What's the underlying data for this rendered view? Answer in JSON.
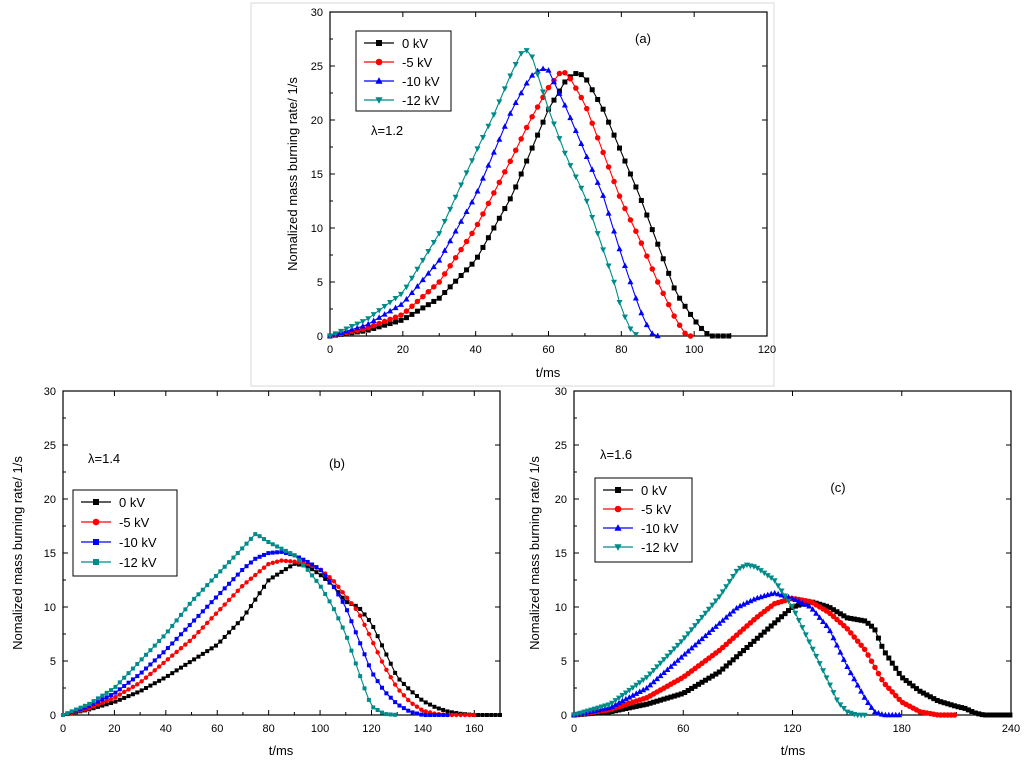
{
  "chart_data": [
    {
      "type": "line",
      "panel": "(a)",
      "annotation": "λ=1.2",
      "xlabel": "t/ms",
      "ylabel": "Nomalized mass burning rate/ 1/s",
      "xlim": [
        0,
        120
      ],
      "ylim": [
        0,
        30
      ],
      "xticks": [
        0,
        20,
        40,
        60,
        80,
        100,
        120
      ],
      "yticks": [
        0,
        5,
        10,
        15,
        20,
        25,
        30
      ],
      "legend_position": "top-left",
      "series": [
        {
          "name": "0 kV",
          "color": "#000000",
          "marker": "square",
          "x": [
            0,
            10,
            20,
            30,
            40,
            50,
            55,
            60,
            65,
            68,
            70,
            75,
            80,
            85,
            90,
            95,
            100,
            103,
            105,
            110
          ],
          "y": [
            0,
            0.5,
            1.5,
            3.5,
            7,
            13,
            17,
            21,
            23.8,
            24.4,
            24,
            21,
            17,
            13,
            8.5,
            4,
            1.5,
            0.3,
            0,
            0
          ]
        },
        {
          "name": "-5 kV",
          "color": "#ff0000",
          "marker": "circle",
          "x": [
            0,
            10,
            20,
            30,
            40,
            50,
            55,
            60,
            63,
            65,
            70,
            75,
            80,
            85,
            90,
            95,
            98,
            100
          ],
          "y": [
            0,
            0.7,
            2,
            5,
            10,
            16.5,
            20,
            23,
            24.3,
            24.4,
            21.5,
            17,
            12.5,
            9,
            5,
            1.5,
            0,
            0
          ]
        },
        {
          "name": "-10 kV",
          "color": "#0000ff",
          "marker": "triangle-up",
          "x": [
            0,
            10,
            20,
            30,
            40,
            45,
            50,
            55,
            58,
            60,
            65,
            70,
            75,
            80,
            85,
            88,
            90
          ],
          "y": [
            0,
            1,
            3,
            7,
            13,
            17,
            21,
            24,
            24.8,
            24.6,
            21,
            17,
            13,
            7.5,
            2.5,
            0.3,
            0
          ]
        },
        {
          "name": "-12 kV",
          "color": "#008b8b",
          "marker": "triangle-down",
          "x": [
            0,
            10,
            20,
            30,
            40,
            45,
            50,
            53,
            55,
            60,
            65,
            70,
            75,
            78,
            80,
            83,
            85
          ],
          "y": [
            0,
            1.5,
            4,
            9.5,
            17,
            20.5,
            24.5,
            26.5,
            26.4,
            21,
            16.5,
            13,
            8,
            5,
            2.5,
            0.3,
            0
          ]
        }
      ]
    },
    {
      "type": "line",
      "panel": "(b)",
      "annotation": "λ=1.4",
      "xlabel": "t/ms",
      "ylabel": "Nomalized mass burning rate/ 1/s",
      "xlim": [
        0,
        170
      ],
      "ylim": [
        0,
        30
      ],
      "xticks": [
        0,
        20,
        40,
        60,
        80,
        100,
        120,
        140,
        160
      ],
      "yticks": [
        0,
        5,
        10,
        15,
        20,
        25,
        30
      ],
      "legend_position": "left",
      "series": [
        {
          "name": "0 kV",
          "color": "#000000",
          "marker": "square",
          "x": [
            0,
            10,
            20,
            30,
            40,
            50,
            60,
            70,
            80,
            90,
            95,
            100,
            105,
            110,
            115,
            120,
            125,
            130,
            135,
            140,
            145,
            150,
            155,
            160,
            170
          ],
          "y": [
            0,
            0.5,
            1.2,
            2.2,
            3.5,
            5,
            6.5,
            9,
            12.5,
            14,
            13.8,
            13,
            12,
            10.5,
            10,
            8.5,
            6,
            3.5,
            2.3,
            1.3,
            0.7,
            0.3,
            0.1,
            0,
            0
          ]
        },
        {
          "name": "-5 kV",
          "color": "#ff0000",
          "marker": "circle",
          "x": [
            0,
            10,
            20,
            30,
            40,
            50,
            60,
            70,
            80,
            85,
            90,
            95,
            100,
            105,
            110,
            115,
            120,
            125,
            130,
            135,
            140,
            145,
            150,
            160
          ],
          "y": [
            0,
            0.6,
            1.6,
            3,
            5,
            7,
            9.5,
            12,
            14,
            14.3,
            14.2,
            14,
            13.5,
            12.5,
            11,
            9.5,
            7,
            4.5,
            2.5,
            1.2,
            0.4,
            0.1,
            0,
            0
          ]
        },
        {
          "name": "-10 kV",
          "color": "#0000ff",
          "marker": "square",
          "x": [
            0,
            10,
            20,
            30,
            40,
            50,
            60,
            70,
            75,
            80,
            85,
            90,
            95,
            100,
            105,
            110,
            115,
            120,
            125,
            130,
            135,
            140,
            150
          ],
          "y": [
            0,
            0.8,
            2,
            3.8,
            6,
            8.5,
            11,
            13.5,
            14.5,
            15,
            15.1,
            14.8,
            14.2,
            13.5,
            12,
            10,
            7,
            4,
            2.2,
            1,
            0.3,
            0,
            0
          ]
        },
        {
          "name": "-12 kV",
          "color": "#008b8b",
          "marker": "square",
          "x": [
            0,
            10,
            20,
            30,
            40,
            50,
            60,
            70,
            75,
            80,
            85,
            90,
            95,
            100,
            105,
            110,
            115,
            118,
            120,
            125,
            130
          ],
          "y": [
            0,
            1,
            2.5,
            5,
            7.5,
            10.5,
            13,
            15.5,
            16.8,
            16,
            15.4,
            14.8,
            13.5,
            12,
            10,
            7.5,
            4,
            2,
            0.8,
            0.1,
            0
          ]
        }
      ]
    },
    {
      "type": "line",
      "panel": "(c)",
      "annotation": "λ=1.6",
      "xlabel": "t/ms",
      "ylabel": "Nomalized mass burning rate/ 1/s",
      "xlim": [
        0,
        240
      ],
      "ylim": [
        0,
        30
      ],
      "xticks": [
        0,
        60,
        120,
        180,
        240
      ],
      "yticks": [
        0,
        5,
        10,
        15,
        20,
        25,
        30
      ],
      "legend_position": "left",
      "series": [
        {
          "name": "0 kV",
          "color": "#000000",
          "marker": "square",
          "x": [
            0,
            20,
            40,
            60,
            80,
            100,
            120,
            130,
            140,
            150,
            160,
            165,
            170,
            180,
            190,
            200,
            210,
            215,
            220,
            225,
            240
          ],
          "y": [
            0,
            0.3,
            1,
            2,
            4,
            7,
            10,
            10.5,
            10,
            9,
            8.7,
            8,
            6,
            3.5,
            2.2,
            1.3,
            0.8,
            0.6,
            0.2,
            0,
            0
          ]
        },
        {
          "name": "-5 kV",
          "color": "#ff0000",
          "marker": "circle",
          "x": [
            0,
            20,
            40,
            60,
            80,
            100,
            110,
            120,
            130,
            140,
            150,
            160,
            170,
            180,
            190,
            200,
            210
          ],
          "y": [
            0,
            0.5,
            1.6,
            3.5,
            6,
            9,
            10.3,
            10.8,
            10.5,
            9.5,
            8,
            6,
            3,
            1.2,
            0.3,
            0,
            0
          ]
        },
        {
          "name": "-10 kV",
          "color": "#0000ff",
          "marker": "triangle-up",
          "x": [
            0,
            20,
            40,
            60,
            80,
            90,
            100,
            110,
            120,
            130,
            140,
            150,
            160,
            165,
            170,
            180
          ],
          "y": [
            0,
            0.7,
            2.5,
            5.5,
            8.5,
            10,
            10.8,
            11.3,
            10.8,
            10,
            8,
            4.5,
            1.5,
            0.3,
            0,
            0
          ]
        },
        {
          "name": "-12 kV",
          "color": "#008b8b",
          "marker": "triangle-down",
          "x": [
            0,
            20,
            40,
            60,
            80,
            90,
            95,
            100,
            110,
            120,
            130,
            140,
            145,
            150,
            155,
            160
          ],
          "y": [
            0,
            1,
            3.5,
            7,
            11,
            13.5,
            13.9,
            13.7,
            12.5,
            10,
            6.5,
            3,
            1.2,
            0.3,
            0,
            0
          ]
        }
      ]
    }
  ]
}
